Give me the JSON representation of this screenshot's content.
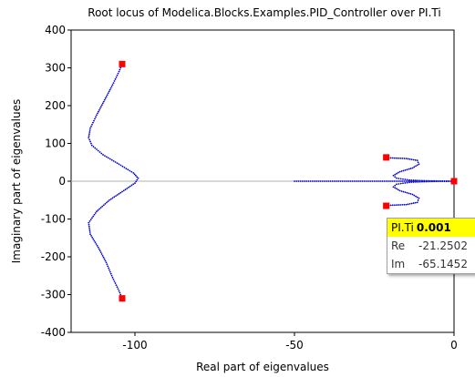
{
  "chart_data": {
    "type": "scatter",
    "title": "Root locus of Modelica.Blocks.Examples.PID_Controller over PI.Ti",
    "xlabel": "Real part of eigenvalues",
    "ylabel": "Imaginary part of eigenvalues",
    "xlim": [
      -120,
      0
    ],
    "ylim": [
      -400,
      400
    ],
    "xticks": [
      -100,
      -50,
      0
    ],
    "yticks": [
      -400,
      -300,
      -200,
      -100,
      0,
      100,
      200,
      300,
      400
    ],
    "xtick_labels": [
      "-100",
      "-50",
      "0"
    ],
    "ytick_labels": [
      "-400",
      "-300",
      "-200",
      "-100",
      "0",
      "100",
      "200",
      "300",
      "400"
    ],
    "grid": false,
    "zero_line": true,
    "series": [
      {
        "kind": "locus",
        "color": "#0000cc",
        "points": [
          [
            -104,
            310
          ],
          [
            -105,
            290
          ],
          [
            -107,
            255
          ],
          [
            -109.5,
            215
          ],
          [
            -112,
            175
          ],
          [
            -114,
            140
          ],
          [
            -114.5,
            115
          ],
          [
            -113.5,
            95
          ],
          [
            -110,
            70
          ],
          [
            -105,
            45
          ],
          [
            -100.5,
            22
          ],
          [
            -99,
            8
          ],
          [
            -100,
            -5
          ],
          [
            -103.5,
            -25
          ],
          [
            -108,
            -50
          ],
          [
            -112,
            -80
          ],
          [
            -114.5,
            -110
          ],
          [
            -114,
            -140
          ],
          [
            -111.5,
            -175
          ],
          [
            -109,
            -215
          ],
          [
            -107,
            -255
          ],
          [
            -105,
            -290
          ],
          [
            -104,
            -310
          ]
        ]
      },
      {
        "kind": "locus",
        "color": "#0000cc",
        "points": [
          [
            -21,
            62
          ],
          [
            -15,
            60
          ],
          [
            -11.5,
            55
          ],
          [
            -11,
            45
          ],
          [
            -13,
            35
          ],
          [
            -17,
            25
          ],
          [
            -19,
            15
          ],
          [
            -18,
            8
          ],
          [
            -14,
            3
          ],
          [
            -10,
            1.5
          ],
          [
            -5,
            0.5
          ],
          [
            -1,
            0
          ]
        ]
      },
      {
        "kind": "locus",
        "color": "#0000cc",
        "points": [
          [
            -21,
            -64
          ],
          [
            -15,
            -62
          ],
          [
            -11.5,
            -56
          ],
          [
            -11,
            -45
          ],
          [
            -13,
            -35
          ],
          [
            -17,
            -25
          ],
          [
            -19,
            -15
          ],
          [
            -18,
            -8
          ],
          [
            -14,
            -3
          ],
          [
            -10,
            -1.5
          ],
          [
            -5,
            -0.5
          ],
          [
            -1,
            0
          ]
        ]
      },
      {
        "kind": "locus",
        "color": "#0000cc",
        "points": [
          [
            -50,
            0
          ],
          [
            -45,
            0
          ],
          [
            -40,
            0
          ],
          [
            -35,
            0
          ],
          [
            -30,
            0
          ],
          [
            -25,
            0
          ],
          [
            -20,
            0
          ],
          [
            -15,
            0
          ],
          [
            -10,
            0
          ],
          [
            -5,
            0
          ],
          [
            -1,
            0
          ]
        ]
      },
      {
        "kind": "markers",
        "color": "#ff0000",
        "points": [
          [
            -104,
            310
          ],
          [
            -104,
            -310
          ],
          [
            -21.25,
            63
          ],
          [
            -21.25,
            -65.1452
          ],
          [
            0,
            0
          ]
        ]
      }
    ]
  },
  "tooltip": {
    "param_label": "PI.Ti",
    "param_value": "0.001",
    "re_label": "Re",
    "re_value": "-21.2502",
    "im_label": "Im",
    "im_value": "-65.1452"
  }
}
